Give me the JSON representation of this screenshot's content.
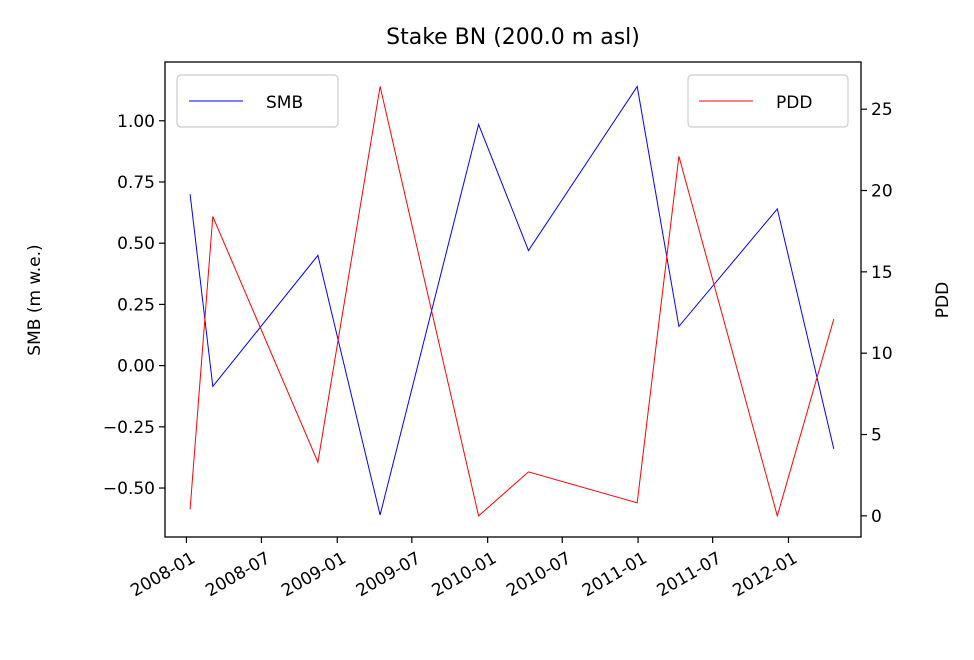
{
  "chart_data": {
    "type": "line",
    "title": "Stake BN (200.0 m asl)",
    "xlabel": "",
    "ylabel": "SMB (m w.e.)",
    "y2label": "PDD",
    "x_ticks": [
      "2008-01",
      "2008-07",
      "2009-01",
      "2009-07",
      "2010-01",
      "2010-07",
      "2011-01",
      "2011-07",
      "2012-01"
    ],
    "xlim": [
      "2007-11-10",
      "2012-06-25"
    ],
    "ylim": [
      -0.7,
      1.24
    ],
    "y_ticks": [
      "1.00",
      "0.75",
      "0.50",
      "0.25",
      "0.00",
      "−0.25",
      "−0.50"
    ],
    "y_tick_values": [
      1.0,
      0.75,
      0.5,
      0.25,
      0.0,
      -0.25,
      -0.5
    ],
    "y2lim": [
      -1.3,
      27.9
    ],
    "y2_ticks": [
      "25",
      "20",
      "15",
      "10",
      "5",
      "0"
    ],
    "y2_tick_values": [
      25,
      20,
      15,
      10,
      5,
      0
    ],
    "grid": false,
    "series": [
      {
        "name": "SMB",
        "axis": "left",
        "color": "#0000ff",
        "legend_position": "upper-left",
        "points": [
          [
            "2008-01-10",
            0.7
          ],
          [
            "2008-03-05",
            -0.085
          ],
          [
            "2008-11-15",
            0.45
          ],
          [
            "2009-04-15",
            -0.61
          ],
          [
            "2009-12-10",
            0.985
          ],
          [
            "2010-04-10",
            0.47
          ],
          [
            "2010-12-30",
            1.14
          ],
          [
            "2011-04-10",
            0.16
          ],
          [
            "2011-12-05",
            0.64
          ],
          [
            "2012-04-20",
            -0.34
          ]
        ]
      },
      {
        "name": "PDD",
        "axis": "right",
        "color": "#ff0000",
        "legend_position": "upper-right",
        "points": [
          [
            "2008-01-10",
            0.4
          ],
          [
            "2008-03-05",
            18.4
          ],
          [
            "2008-11-15",
            3.3
          ],
          [
            "2009-04-15",
            26.4
          ],
          [
            "2009-12-10",
            0.0
          ],
          [
            "2010-04-10",
            2.7
          ],
          [
            "2010-12-30",
            0.8
          ],
          [
            "2011-04-10",
            22.1
          ],
          [
            "2011-12-05",
            0.0
          ],
          [
            "2012-04-20",
            12.1
          ]
        ]
      }
    ]
  }
}
